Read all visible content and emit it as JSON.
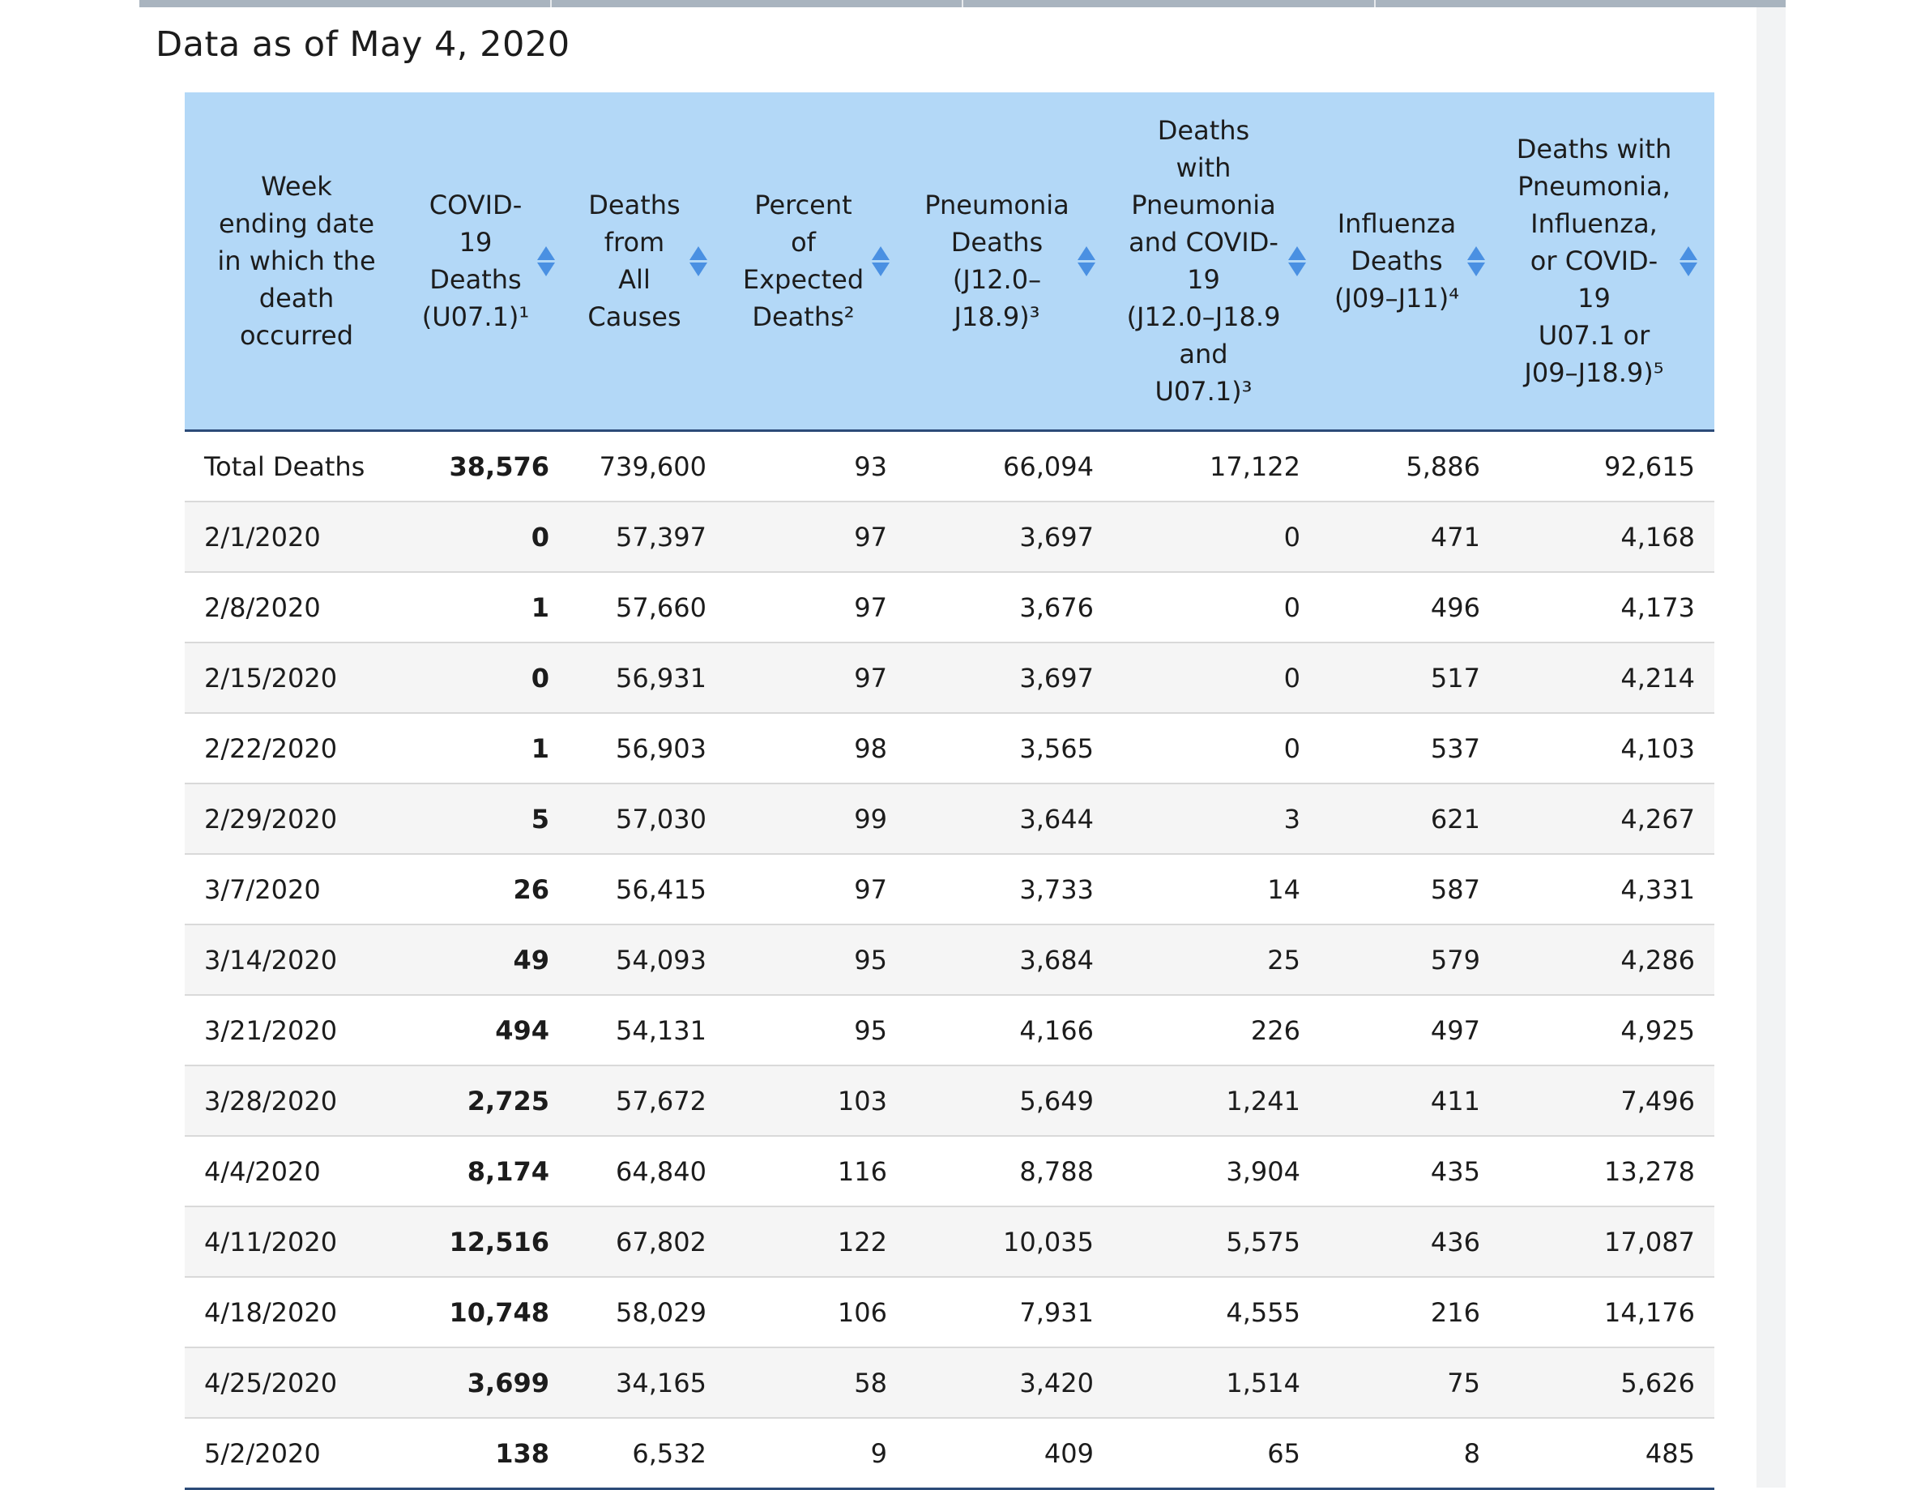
{
  "page": {
    "title": "Data as of May 4, 2020"
  },
  "table": {
    "columns": [
      {
        "lines": [
          "Week",
          "ending date",
          "in which the",
          "death",
          "occurred"
        ],
        "sortable": false
      },
      {
        "lines": [
          "COVID-",
          "19",
          "Deaths",
          "(U07.1)¹"
        ],
        "sortable": true
      },
      {
        "lines": [
          "Deaths",
          "from",
          "All",
          "Causes"
        ],
        "sortable": true
      },
      {
        "lines": [
          "Percent",
          "of",
          "Expected",
          "Deaths²"
        ],
        "sortable": true
      },
      {
        "lines": [
          "Pneumonia",
          "Deaths",
          "(J12.0–",
          "J18.9)³"
        ],
        "sortable": true
      },
      {
        "lines": [
          "Deaths",
          "with",
          "Pneumonia",
          "and COVID-",
          "19",
          "(J12.0–J18.9",
          "and",
          "U07.1)³"
        ],
        "sortable": true
      },
      {
        "lines": [
          "Influenza",
          "Deaths",
          "(J09–J11)⁴"
        ],
        "sortable": true
      },
      {
        "lines": [
          "Deaths with",
          "Pneumonia,",
          "Influenza,",
          "or COVID-",
          "19",
          "U07.1 or",
          "J09–J18.9)⁵"
        ],
        "sortable": true
      }
    ],
    "rows": [
      [
        "Total Deaths",
        "38,576",
        "739,600",
        "93",
        "66,094",
        "17,122",
        "5,886",
        "92,615"
      ],
      [
        "2/1/2020",
        "0",
        "57,397",
        "97",
        "3,697",
        "0",
        "471",
        "4,168"
      ],
      [
        "2/8/2020",
        "1",
        "57,660",
        "97",
        "3,676",
        "0",
        "496",
        "4,173"
      ],
      [
        "2/15/2020",
        "0",
        "56,931",
        "97",
        "3,697",
        "0",
        "517",
        "4,214"
      ],
      [
        "2/22/2020",
        "1",
        "56,903",
        "98",
        "3,565",
        "0",
        "537",
        "4,103"
      ],
      [
        "2/29/2020",
        "5",
        "57,030",
        "99",
        "3,644",
        "3",
        "621",
        "4,267"
      ],
      [
        "3/7/2020",
        "26",
        "56,415",
        "97",
        "3,733",
        "14",
        "587",
        "4,331"
      ],
      [
        "3/14/2020",
        "49",
        "54,093",
        "95",
        "3,684",
        "25",
        "579",
        "4,286"
      ],
      [
        "3/21/2020",
        "494",
        "54,131",
        "95",
        "4,166",
        "226",
        "497",
        "4,925"
      ],
      [
        "3/28/2020",
        "2,725",
        "57,672",
        "103",
        "5,649",
        "1,241",
        "411",
        "7,496"
      ],
      [
        "4/4/2020",
        "8,174",
        "64,840",
        "116",
        "8,788",
        "3,904",
        "435",
        "13,278"
      ],
      [
        "4/11/2020",
        "12,516",
        "67,802",
        "122",
        "10,035",
        "5,575",
        "436",
        "17,087"
      ],
      [
        "4/18/2020",
        "10,748",
        "58,029",
        "106",
        "7,931",
        "4,555",
        "216",
        "14,176"
      ],
      [
        "4/25/2020",
        "3,699",
        "34,165",
        "58",
        "3,420",
        "1,514",
        "75",
        "5,626"
      ],
      [
        "5/2/2020",
        "138",
        "6,532",
        "9",
        "409",
        "65",
        "8",
        "485"
      ]
    ]
  },
  "colors": {
    "header_bg": "#b3d8f7",
    "sort_icon": "#4a90e2",
    "border_dark": "#2c4b78"
  },
  "icons": {
    "sort": "sort-arrows-icon"
  }
}
